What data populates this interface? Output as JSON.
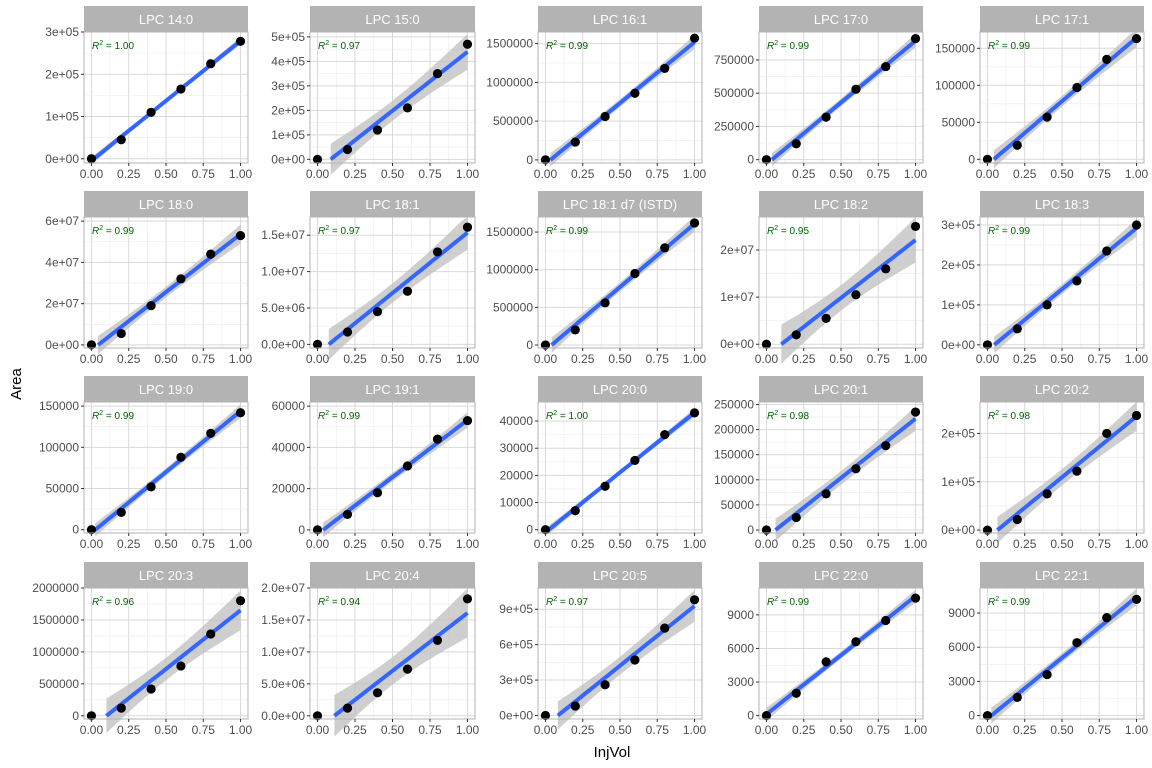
{
  "chart_data": {
    "type": "scatter",
    "xlabel": "InjVol",
    "ylabel": "Area",
    "x": [
      0,
      0.2,
      0.4,
      0.6,
      0.8,
      1.0
    ],
    "x_ticks": [
      "0.00",
      "0.25",
      "0.50",
      "0.75",
      "1.00"
    ],
    "colors": {
      "strip": "#b3b3b3",
      "grid": "#d9d9d9",
      "points": "#000000",
      "fit_line": "#3366ff",
      "ribbon": "#bfbfbf",
      "r2_text": "#006400"
    },
    "panels": [
      {
        "title": "LPC 14:0",
        "r2": "= 1.00",
        "y": [
          0,
          45000,
          110000,
          165000,
          225000,
          278000
        ],
        "ylim": [
          -10000,
          300000
        ],
        "yticks": [
          0,
          100000,
          200000,
          300000
        ],
        "ytick_labels": [
          "0e+00",
          "1e+05",
          "2e+05",
          "3e+05"
        ]
      },
      {
        "title": "LPC 15:0",
        "r2": "= 0.97",
        "y": [
          0,
          40000,
          120000,
          210000,
          350000,
          470000
        ],
        "ylim": [
          -15000,
          520000
        ],
        "yticks": [
          0,
          100000,
          200000,
          300000,
          400000,
          500000
        ],
        "ytick_labels": [
          "0e+00",
          "1e+05",
          "2e+05",
          "3e+05",
          "4e+05",
          "5e+05"
        ]
      },
      {
        "title": "LPC 16:1",
        "r2": "= 0.99",
        "y": [
          0,
          230000,
          560000,
          860000,
          1180000,
          1570000
        ],
        "ylim": [
          -40000,
          1650000
        ],
        "yticks": [
          0,
          500000,
          1000000,
          1500000
        ],
        "ytick_labels": [
          "0",
          "500000",
          "1000000",
          "1500000"
        ]
      },
      {
        "title": "LPC 17:0",
        "r2": "= 0.99",
        "y": [
          0,
          120000,
          320000,
          530000,
          700000,
          910000
        ],
        "ylim": [
          -25000,
          960000
        ],
        "yticks": [
          0,
          250000,
          500000,
          750000
        ],
        "ytick_labels": [
          "0",
          "250000",
          "500000",
          "750000"
        ]
      },
      {
        "title": "LPC 17:1",
        "r2": "= 0.99",
        "y": [
          0,
          19000,
          57000,
          97000,
          135000,
          163000
        ],
        "ylim": [
          -5000,
          172000
        ],
        "yticks": [
          0,
          50000,
          100000,
          150000
        ],
        "ytick_labels": [
          "0",
          "50000",
          "100000",
          "150000"
        ]
      },
      {
        "title": "LPC 18:0",
        "r2": "= 0.99",
        "y": [
          0,
          5500000,
          19000000,
          32000000,
          44000000,
          53000000
        ],
        "ylim": [
          -1500000,
          62000000
        ],
        "yticks": [
          0,
          20000000,
          40000000,
          60000000
        ],
        "ytick_labels": [
          "0e+00",
          "2e+07",
          "4e+07",
          "6e+07"
        ]
      },
      {
        "title": "LPC 18:1",
        "r2": "= 0.97",
        "y": [
          0,
          1700000,
          4500000,
          7300000,
          12700000,
          16100000
        ],
        "ylim": [
          -500000,
          17500000
        ],
        "yticks": [
          0,
          5000000,
          10000000,
          15000000
        ],
        "ytick_labels": [
          "0.0e+00",
          "5.0e+06",
          "1.0e+07",
          "1.5e+07"
        ]
      },
      {
        "title": "LPC 18:1 d7 (ISTD)",
        "r2": "= 0.99",
        "y": [
          0,
          200000,
          560000,
          950000,
          1290000,
          1620000
        ],
        "ylim": [
          -40000,
          1700000
        ],
        "yticks": [
          0,
          500000,
          1000000,
          1500000
        ],
        "ytick_labels": [
          "0",
          "500000",
          "1000000",
          "1500000"
        ]
      },
      {
        "title": "LPC 18:2",
        "r2": "= 0.95",
        "y": [
          0,
          2000000,
          5500000,
          10500000,
          16000000,
          25000000
        ],
        "ylim": [
          -800000,
          27000000
        ],
        "yticks": [
          0,
          10000000,
          20000000
        ],
        "ytick_labels": [
          "0e+00",
          "1e+07",
          "2e+07"
        ]
      },
      {
        "title": "LPC 18:3",
        "r2": "= 0.99",
        "y": [
          0,
          40000,
          100000,
          160000,
          235000,
          300000
        ],
        "ylim": [
          -8000,
          320000
        ],
        "yticks": [
          0,
          100000,
          200000,
          300000
        ],
        "ytick_labels": [
          "0e+00",
          "1e+05",
          "2e+05",
          "3e+05"
        ]
      },
      {
        "title": "LPC 19:0",
        "r2": "= 0.99",
        "y": [
          0,
          21000,
          52000,
          88000,
          117000,
          142000
        ],
        "ylim": [
          -4000,
          155000
        ],
        "yticks": [
          0,
          50000,
          100000,
          150000
        ],
        "ytick_labels": [
          "0",
          "50000",
          "100000",
          "150000"
        ]
      },
      {
        "title": "LPC 19:1",
        "r2": "= 0.99",
        "y": [
          0,
          7500,
          18000,
          31000,
          44000,
          53000
        ],
        "ylim": [
          -1500,
          62000
        ],
        "yticks": [
          0,
          20000,
          40000,
          60000
        ],
        "ytick_labels": [
          "0",
          "20000",
          "40000",
          "60000"
        ]
      },
      {
        "title": "LPC 20:0",
        "r2": "= 1.00",
        "y": [
          0,
          7000,
          16000,
          25500,
          35000,
          43000
        ],
        "ylim": [
          -1200,
          47000
        ],
        "yticks": [
          0,
          10000,
          20000,
          30000,
          40000
        ],
        "ytick_labels": [
          "0",
          "10000",
          "20000",
          "30000",
          "40000"
        ]
      },
      {
        "title": "LPC 20:1",
        "r2": "= 0.98",
        "y": [
          0,
          25000,
          72000,
          122000,
          168000,
          235000
        ],
        "ylim": [
          -6000,
          255000
        ],
        "yticks": [
          0,
          50000,
          100000,
          150000,
          200000,
          250000
        ],
        "ytick_labels": [
          "0",
          "50000",
          "100000",
          "150000",
          "200000",
          "250000"
        ]
      },
      {
        "title": "LPC 20:2",
        "r2": "= 0.98",
        "y": [
          0,
          22000,
          75000,
          122000,
          200000,
          237000
        ],
        "ylim": [
          -6000,
          265000
        ],
        "yticks": [
          0,
          100000,
          200000
        ],
        "ytick_labels": [
          "0e+00",
          "1e+05",
          "2e+05"
        ]
      },
      {
        "title": "LPC 20:3",
        "r2": "= 0.96",
        "y": [
          0,
          120000,
          420000,
          780000,
          1280000,
          1800000
        ],
        "ylim": [
          -50000,
          2000000
        ],
        "yticks": [
          0,
          500000,
          1000000,
          1500000,
          2000000
        ],
        "ytick_labels": [
          "0",
          "500000",
          "1000000",
          "1500000",
          "2000000"
        ]
      },
      {
        "title": "LPC 20:4",
        "r2": "= 0.94",
        "y": [
          0,
          1200000,
          3600000,
          7300000,
          11800000,
          18300000
        ],
        "ylim": [
          -500000,
          20000000
        ],
        "yticks": [
          0,
          5000000,
          10000000,
          15000000,
          20000000
        ],
        "ytick_labels": [
          "0.0e+00",
          "5.0e+06",
          "1.0e+07",
          "1.5e+07",
          "2.0e+07"
        ]
      },
      {
        "title": "LPC 20:5",
        "r2": "= 0.97",
        "y": [
          0,
          80000,
          260000,
          470000,
          740000,
          980000
        ],
        "ylim": [
          -30000,
          1080000
        ],
        "yticks": [
          0,
          300000,
          600000,
          900000
        ],
        "ytick_labels": [
          "0e+00",
          "3e+05",
          "6e+05",
          "9e+05"
        ]
      },
      {
        "title": "LPC 22:0",
        "r2": "= 0.99",
        "y": [
          0,
          2000,
          4800,
          6600,
          8500,
          10500
        ],
        "ylim": [
          -300,
          11400
        ],
        "yticks": [
          0,
          3000,
          6000,
          9000
        ],
        "ytick_labels": [
          "0",
          "3000",
          "6000",
          "9000"
        ]
      },
      {
        "title": "LPC 22:1",
        "r2": "= 0.99",
        "y": [
          0,
          1600,
          3600,
          6400,
          8600,
          10200
        ],
        "ylim": [
          -300,
          11200
        ],
        "yticks": [
          0,
          3000,
          6000,
          9000
        ],
        "ytick_labels": [
          "0",
          "3000",
          "6000",
          "9000"
        ]
      }
    ]
  }
}
